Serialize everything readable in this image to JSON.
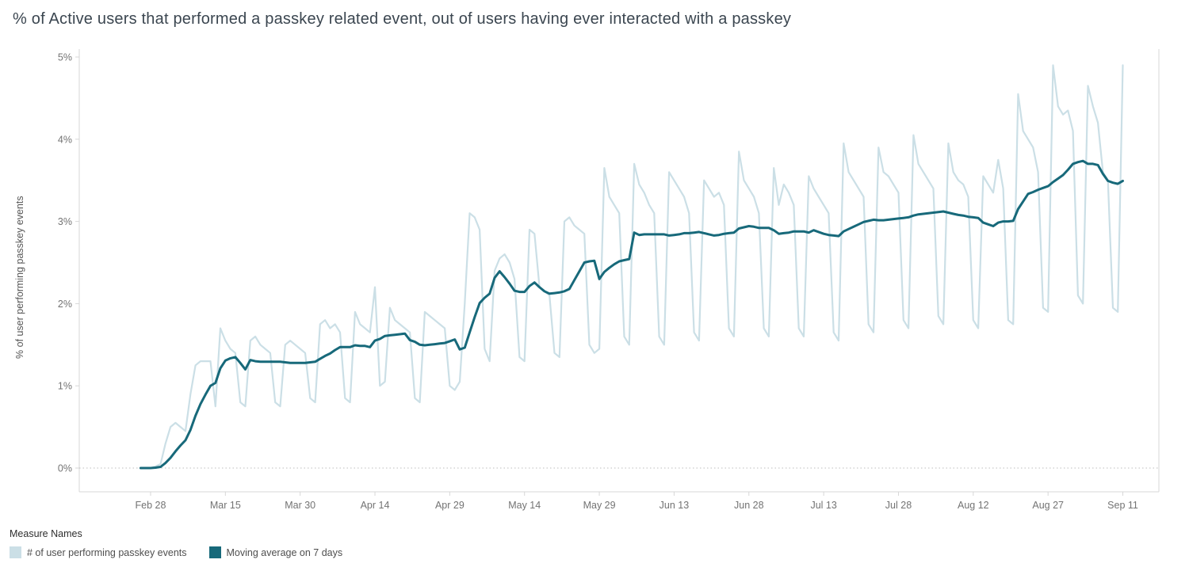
{
  "title": "% of Active users that performed a passkey related event, out of users having ever interacted with a passkey",
  "legend": {
    "title": "Measure Names",
    "items": [
      {
        "label": "# of user performing passkey events",
        "color": "#cbdfe6"
      },
      {
        "label": "Moving average on 7 days",
        "color": "#17697a"
      }
    ]
  },
  "chart_data": {
    "type": "line",
    "title": "% of Active users that performed a passkey related event, out of users having ever interacted with a passkey",
    "xlabel": "",
    "ylabel": "% of user performing passkey events",
    "unit": "%",
    "ylim": [
      0,
      5
    ],
    "y_ticks": [
      "0%",
      "1%",
      "2%",
      "3%",
      "4%",
      "5%"
    ],
    "grid": "dotted horizontal line at 0% only",
    "legend_position": "bottom-left",
    "x_start_date": "Feb 26",
    "x_end_date": "Sep 11",
    "x_step": "1 day",
    "x_tick_labels": [
      "Feb 28",
      "Mar 15",
      "Mar 30",
      "Apr 14",
      "Apr 29",
      "May 14",
      "May 29",
      "Jun 13",
      "Jun 28",
      "Jul 13",
      "Jul 28",
      "Aug 12",
      "Aug 27",
      "Sep 11"
    ],
    "x_tick_indices": [
      2,
      17,
      32,
      47,
      62,
      77,
      92,
      107,
      122,
      137,
      152,
      167,
      182,
      197
    ],
    "series": [
      {
        "name": "# of user performing passkey events",
        "color": "#cbdfe6",
        "values": [
          0,
          0,
          0,
          0.02,
          0.05,
          0.3,
          0.5,
          0.55,
          0.5,
          0.45,
          0.9,
          1.25,
          1.3,
          1.3,
          1.3,
          0.75,
          1.7,
          1.55,
          1.45,
          1.4,
          0.8,
          0.75,
          1.55,
          1.6,
          1.5,
          1.45,
          1.4,
          0.8,
          0.75,
          1.5,
          1.55,
          1.5,
          1.45,
          1.4,
          0.85,
          0.8,
          1.75,
          1.8,
          1.7,
          1.75,
          1.65,
          0.85,
          0.8,
          1.9,
          1.75,
          1.7,
          1.65,
          2.2,
          1.0,
          1.05,
          1.95,
          1.8,
          1.75,
          1.7,
          1.65,
          0.85,
          0.8,
          1.9,
          1.85,
          1.8,
          1.75,
          1.7,
          1.0,
          0.95,
          1.05,
          2.0,
          3.1,
          3.05,
          2.9,
          1.45,
          1.3,
          2.4,
          2.55,
          2.6,
          2.5,
          2.3,
          1.35,
          1.3,
          2.9,
          2.85,
          2.2,
          2.15,
          2.1,
          1.4,
          1.35,
          3.0,
          3.05,
          2.95,
          2.9,
          2.85,
          1.5,
          1.4,
          1.45,
          3.65,
          3.3,
          3.2,
          3.1,
          1.6,
          1.5,
          3.7,
          3.45,
          3.35,
          3.2,
          3.1,
          1.6,
          1.5,
          3.6,
          3.5,
          3.4,
          3.3,
          3.1,
          1.65,
          1.55,
          3.5,
          3.4,
          3.3,
          3.35,
          3.2,
          1.7,
          1.6,
          3.85,
          3.5,
          3.4,
          3.3,
          3.1,
          1.7,
          1.6,
          3.65,
          3.2,
          3.45,
          3.35,
          3.2,
          1.7,
          1.6,
          3.55,
          3.4,
          3.3,
          3.2,
          3.1,
          1.65,
          1.55,
          3.95,
          3.6,
          3.5,
          3.4,
          3.3,
          1.75,
          1.65,
          3.9,
          3.6,
          3.55,
          3.45,
          3.35,
          1.8,
          1.7,
          4.05,
          3.7,
          3.6,
          3.5,
          3.4,
          1.85,
          1.75,
          3.95,
          3.6,
          3.5,
          3.45,
          3.3,
          1.8,
          1.7,
          3.55,
          3.45,
          3.35,
          3.75,
          3.4,
          1.8,
          1.75,
          4.55,
          4.1,
          4.0,
          3.9,
          3.6,
          1.95,
          1.9,
          4.9,
          4.4,
          4.3,
          4.35,
          4.1,
          2.1,
          2.0,
          4.65,
          4.4,
          4.2,
          3.6,
          3.5,
          1.95,
          1.9,
          4.9
        ]
      },
      {
        "name": "Moving average on 7 days",
        "color": "#17697a",
        "window": 7,
        "derived": "trailing 7-day moving average of the daily series"
      }
    ]
  }
}
